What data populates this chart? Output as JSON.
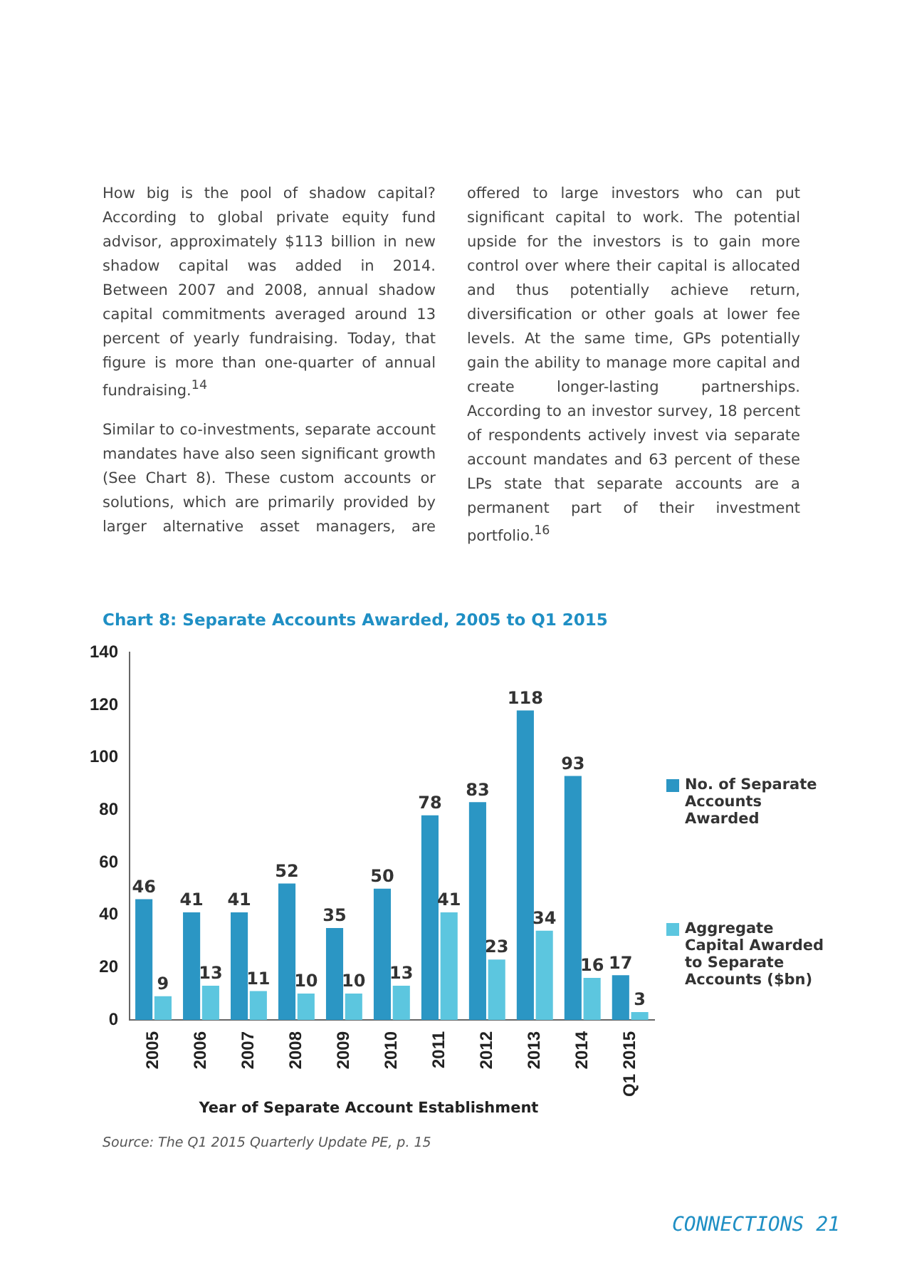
{
  "chart_data": {
    "type": "bar",
    "title": "Chart 8: Separate Accounts Awarded, 2005 to Q1 2015",
    "xlabel": "Year of Separate Account Establishment",
    "categories": [
      "2005",
      "2006",
      "2007",
      "2008",
      "2009",
      "2010",
      "2011",
      "2012",
      "2013",
      "2014",
      "Q1 2015"
    ],
    "series": [
      {
        "name": "No. of Separate Accounts Awarded",
        "color": "#2b96c4",
        "values": [
          46,
          41,
          41,
          52,
          35,
          50,
          78,
          83,
          118,
          93,
          17
        ]
      },
      {
        "name": "Aggregate Capital Awarded to Separate Accounts ($bn)",
        "color": "#5cc6df",
        "values": [
          9,
          13,
          11,
          10,
          10,
          13,
          41,
          23,
          34,
          16,
          3
        ]
      }
    ],
    "ylim": [
      0,
      140
    ],
    "yticks": [
      0,
      20,
      40,
      60,
      80,
      100,
      120,
      140
    ],
    "grid": false,
    "legend": "right",
    "data_labels": true,
    "annotations": [
      "How big is the pool of shadow capital? According to global private equity fund advisor, approximately $113 billion in new shadow capital was added in 2014. Between 2007 and 2008, annual shadow capital commitments averaged around 13 percent of yearly fundraising. Today, that figure is more than one-quarter of annual fundraising.$^{14}$",
      "Similar to co-investments, separate account mandates have also seen significant growth (See Chart 8). These custom accounts or solutions, which are primarily provided by larger alternative asset managers, are offered to large investors who can put significant capital to work. The potential upside for the investors is to gain more control over where their capital is allocated and thus potentially achieve return, diversification or other goals at lower fee levels. At the same time, GPs potentially gain the ability to manage more capital and create longer-lasting partnerships. According to an investor survey, 18 percent of respondents actively invest via separate account mandates and 63 percent of these LPs state that separate accounts are a permanent part of their investment portfolio.$^{16}$",
      "Source: The Q1 2015 Quarterly Update PE, p. 15",
      "CONNECTIONS 21"
    ]
  }
}
